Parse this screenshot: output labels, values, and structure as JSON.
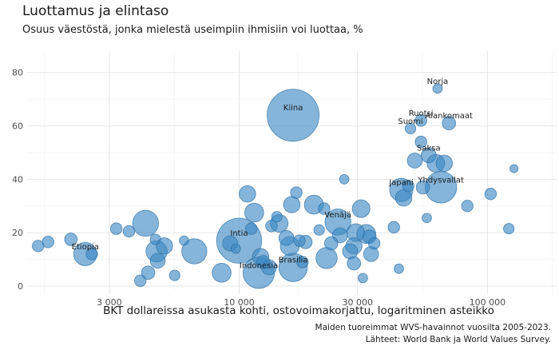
{
  "chart_data": {
    "type": "scatter",
    "title": "Luottamus ja elintaso",
    "subtitle": "Osuus väestöstä, jonka mielestä useimpiin ihmisiin voi luottaa, %",
    "xlabel": "BKT dollareissa asukasta kohti, ostovoimakorjattu, logaritminen asteikko",
    "ylabel": "",
    "xscale": "log",
    "xlim": [
      1400,
      190000
    ],
    "ylim": [
      -3,
      88
    ],
    "xticks": [
      3000,
      10000,
      30000,
      100000
    ],
    "xtick_labels": [
      "3 000",
      "10 000",
      "30 000",
      "100 000"
    ],
    "yticks": [
      0,
      20,
      40,
      60,
      80
    ],
    "ytick_labels": [
      "0",
      "20",
      "40",
      "60",
      "80"
    ],
    "grid": true,
    "legend": "none",
    "point_color": "#3a87c4",
    "caption": [
      "Maiden tuoreimmat WVS-havainnot vuosilta 2005-2023.",
      "Lähteet: World Bank ja World Values Survey."
    ],
    "points": [
      {
        "label": "Norja",
        "x": 63000,
        "y": 74,
        "size": 2
      },
      {
        "label": "Kiina",
        "x": 16500,
        "y": 64,
        "size": 60
      },
      {
        "label": "Ruotsi",
        "x": 54000,
        "y": 62,
        "size": 3
      },
      {
        "label": "Alankomaat",
        "x": 70000,
        "y": 61,
        "size": 4
      },
      {
        "label": "Suomi",
        "x": 49000,
        "y": 59,
        "size": 2.5
      },
      {
        "label": "Saksa",
        "x": 58000,
        "y": 49,
        "size": 5
      },
      {
        "label": "Yhdysvallat",
        "x": 65000,
        "y": 37,
        "size": 22
      },
      {
        "label": "Japani",
        "x": 45000,
        "y": 36,
        "size": 12
      },
      {
        "label": "Venäjä",
        "x": 25000,
        "y": 24,
        "size": 15
      },
      {
        "label": "Intia",
        "x": 10000,
        "y": 17,
        "size": 45
      },
      {
        "label": "Etiopia",
        "x": 2400,
        "y": 12,
        "size": 12
      },
      {
        "label": "Brasilia",
        "x": 16500,
        "y": 7,
        "size": 18
      },
      {
        "label": "Indonesia",
        "x": 12000,
        "y": 5,
        "size": 22
      },
      {
        "label": "",
        "x": 1550,
        "y": 15,
        "size": 3
      },
      {
        "label": "",
        "x": 1700,
        "y": 16.5,
        "size": 3
      },
      {
        "label": "",
        "x": 2100,
        "y": 17.5,
        "size": 3.5
      },
      {
        "label": "",
        "x": 2550,
        "y": 12,
        "size": 3
      },
      {
        "label": "",
        "x": 3200,
        "y": 21.5,
        "size": 3
      },
      {
        "label": "",
        "x": 3600,
        "y": 20.5,
        "size": 3
      },
      {
        "label": "",
        "x": 4200,
        "y": 23.5,
        "size": 15
      },
      {
        "label": "",
        "x": 4600,
        "y": 17.5,
        "size": 2.5
      },
      {
        "label": "",
        "x": 4650,
        "y": 13,
        "size": 10
      },
      {
        "label": "",
        "x": 4700,
        "y": 9.5,
        "size": 5
      },
      {
        "label": "",
        "x": 4300,
        "y": 5,
        "size": 4
      },
      {
        "label": "",
        "x": 4000,
        "y": 2,
        "size": 3
      },
      {
        "label": "",
        "x": 5000,
        "y": 15,
        "size": 6
      },
      {
        "label": "",
        "x": 5500,
        "y": 4,
        "size": 2.5
      },
      {
        "label": "",
        "x": 6000,
        "y": 17,
        "size": 2
      },
      {
        "label": "",
        "x": 6600,
        "y": 13,
        "size": 14
      },
      {
        "label": "",
        "x": 8500,
        "y": 5,
        "size": 8
      },
      {
        "label": "",
        "x": 9200,
        "y": 16,
        "size": 5
      },
      {
        "label": "",
        "x": 9700,
        "y": 14,
        "size": 2
      },
      {
        "label": "",
        "x": 10800,
        "y": 34.5,
        "size": 6
      },
      {
        "label": "",
        "x": 11500,
        "y": 27.5,
        "size": 8
      },
      {
        "label": "",
        "x": 11200,
        "y": 21.5,
        "size": 3
      },
      {
        "label": "",
        "x": 12200,
        "y": 11,
        "size": 6
      },
      {
        "label": "",
        "x": 12500,
        "y": 9,
        "size": 4
      },
      {
        "label": "",
        "x": 13200,
        "y": 7,
        "size": 5
      },
      {
        "label": "",
        "x": 13500,
        "y": 22.5,
        "size": 3
      },
      {
        "label": "",
        "x": 14200,
        "y": 26,
        "size": 2.5
      },
      {
        "label": "",
        "x": 14500,
        "y": 23.5,
        "size": 7
      },
      {
        "label": "",
        "x": 15500,
        "y": 18,
        "size": 5
      },
      {
        "label": "",
        "x": 16000,
        "y": 15,
        "size": 8
      },
      {
        "label": "",
        "x": 16300,
        "y": 30.5,
        "size": 6
      },
      {
        "label": "",
        "x": 17000,
        "y": 35,
        "size": 3
      },
      {
        "label": "",
        "x": 17500,
        "y": 17,
        "size": 3
      },
      {
        "label": "",
        "x": 18500,
        "y": 16.5,
        "size": 4
      },
      {
        "label": "",
        "x": 18000,
        "y": 9,
        "size": 3
      },
      {
        "label": "",
        "x": 20000,
        "y": 30.5,
        "size": 8
      },
      {
        "label": "",
        "x": 21000,
        "y": 21,
        "size": 2.5
      },
      {
        "label": "",
        "x": 22000,
        "y": 29,
        "size": 3
      },
      {
        "label": "",
        "x": 22500,
        "y": 10.5,
        "size": 10
      },
      {
        "label": "",
        "x": 23500,
        "y": 16,
        "size": 4
      },
      {
        "label": "",
        "x": 25500,
        "y": 19,
        "size": 5
      },
      {
        "label": "",
        "x": 26500,
        "y": 40,
        "size": 2
      },
      {
        "label": "",
        "x": 28000,
        "y": 13,
        "size": 5
      },
      {
        "label": "",
        "x": 29500,
        "y": 20,
        "size": 7
      },
      {
        "label": "",
        "x": 29000,
        "y": 15,
        "size": 6
      },
      {
        "label": "",
        "x": 29000,
        "y": 8.5,
        "size": 4
      },
      {
        "label": "",
        "x": 31000,
        "y": 29,
        "size": 7
      },
      {
        "label": "",
        "x": 31500,
        "y": 3,
        "size": 2
      },
      {
        "label": "",
        "x": 32500,
        "y": 19.5,
        "size": 8
      },
      {
        "label": "",
        "x": 33500,
        "y": 18.5,
        "size": 4
      },
      {
        "label": "",
        "x": 34000,
        "y": 12,
        "size": 5
      },
      {
        "label": "",
        "x": 35000,
        "y": 16,
        "size": 3
      },
      {
        "label": "",
        "x": 42000,
        "y": 22,
        "size": 3
      },
      {
        "label": "",
        "x": 44000,
        "y": 6.5,
        "size": 2
      },
      {
        "label": "",
        "x": 46000,
        "y": 33,
        "size": 6
      },
      {
        "label": "",
        "x": 48000,
        "y": 37.5,
        "size": 3
      },
      {
        "label": "",
        "x": 51000,
        "y": 47,
        "size": 5
      },
      {
        "label": "",
        "x": 54000,
        "y": 54,
        "size": 3
      },
      {
        "label": "",
        "x": 55000,
        "y": 37,
        "size": 4
      },
      {
        "label": "",
        "x": 57000,
        "y": 25.5,
        "size": 2
      },
      {
        "label": "",
        "x": 62000,
        "y": 46,
        "size": 7
      },
      {
        "label": "",
        "x": 67000,
        "y": 46,
        "size": 6
      },
      {
        "label": "",
        "x": 83000,
        "y": 30,
        "size": 3
      },
      {
        "label": "",
        "x": 103000,
        "y": 34.5,
        "size": 3
      },
      {
        "label": "",
        "x": 122000,
        "y": 21.5,
        "size": 2.5
      },
      {
        "label": "",
        "x": 128000,
        "y": 44,
        "size": 1.5
      }
    ]
  }
}
